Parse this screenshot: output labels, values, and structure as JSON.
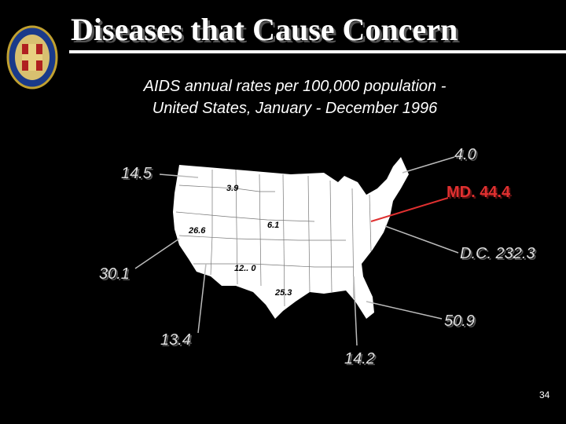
{
  "title": "Diseases that Cause Concern",
  "subtitle_line1": "AIDS annual rates per 100,000 population -",
  "subtitle_line2": "United States, January - December 1996",
  "labels": {
    "wa": "14.5",
    "me": "4.0",
    "md": "MD. 44.4",
    "dc": "D.C. 232.3",
    "ca": "30.1",
    "az": "13.4",
    "fl": "50.9",
    "ga": "14.2",
    "mt": "3.9",
    "nv": "26.6",
    "co": "6.1",
    "ok": "12.. 0",
    "tx": "25.3"
  },
  "colors": {
    "map_fill": "#ffffff",
    "leader": "#bbbbbb",
    "md_accent": "#e03030"
  },
  "page_number": "34"
}
